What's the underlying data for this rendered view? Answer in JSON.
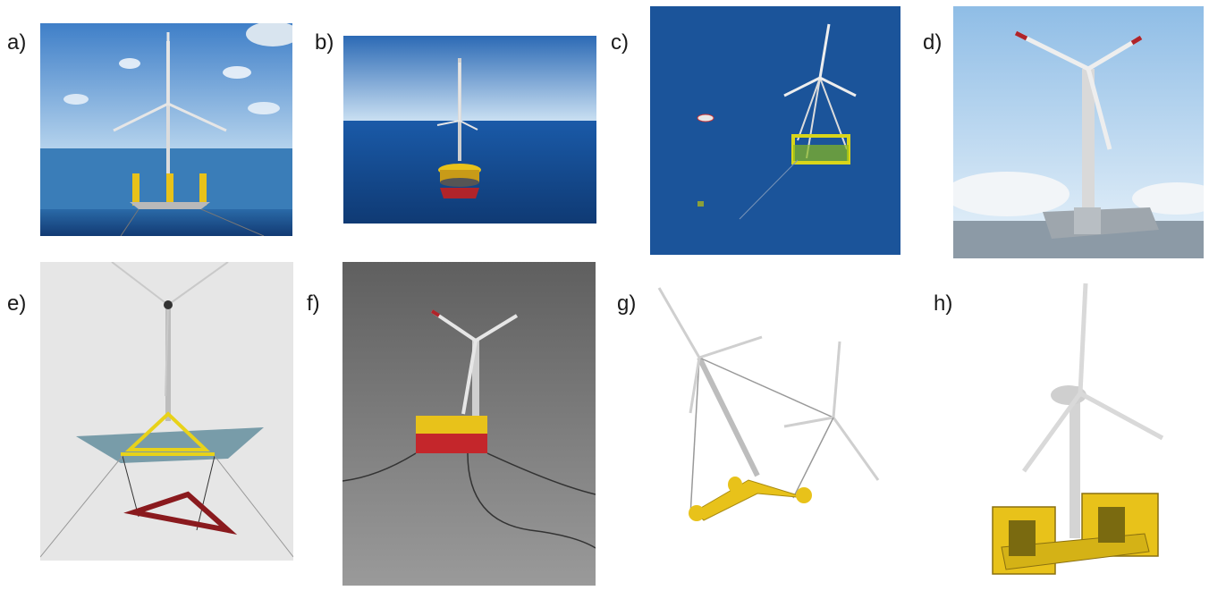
{
  "panels": [
    {
      "label": "a)",
      "description_icon": "floating-wind-turbine-semisubmersible"
    },
    {
      "label": "b)",
      "description_icon": "floating-wind-turbine-barge"
    },
    {
      "label": "c)",
      "description_icon": "floating-wind-turbine-tension-leg"
    },
    {
      "label": "d)",
      "description_icon": "floating-wind-turbine-windfloat"
    },
    {
      "label": "e)",
      "description_icon": "floating-wind-turbine-spar-suspended"
    },
    {
      "label": "f)",
      "description_icon": "floating-wind-turbine-ideol"
    },
    {
      "label": "g)",
      "description_icon": "floating-wind-turbine-twin-rotor"
    },
    {
      "label": "h)",
      "description_icon": "floating-wind-turbine-yellow-platform"
    }
  ],
  "colors": {
    "sky": "#6fa6dc",
    "sea": "#1e5a94",
    "deep_sea": "#123a73",
    "yellow": "#e8c21a",
    "red": "#b0242a",
    "grey_bg": "#7a7a7a"
  }
}
